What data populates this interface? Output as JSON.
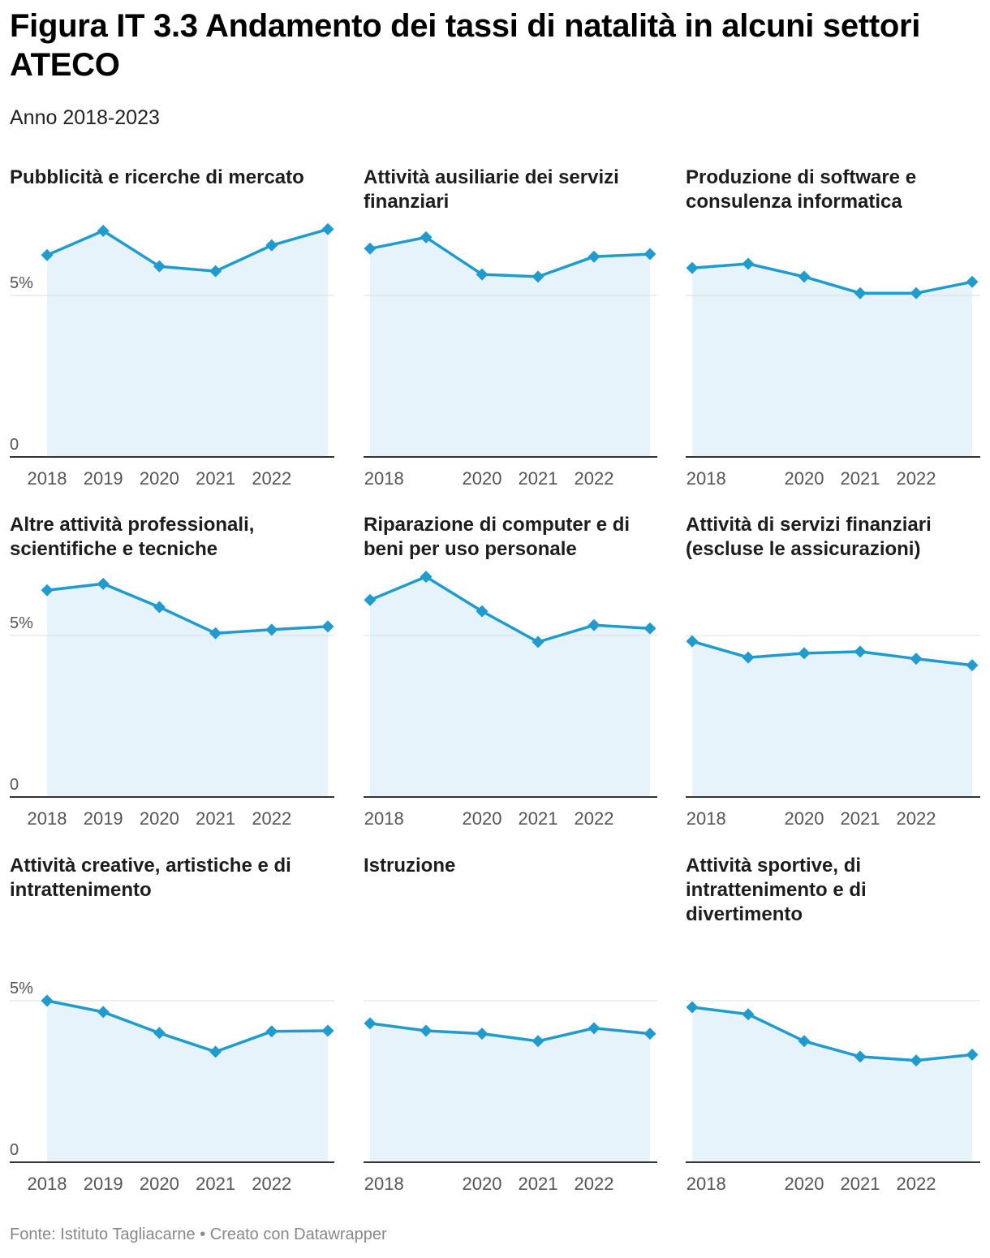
{
  "title": "Figura IT 3.3 Andamento dei tassi di natalità in alcuni settori ATECO",
  "subtitle": "Anno 2018-2023",
  "source": "Fonte: Istituto Tagliacarne • Creato con Datawrapper",
  "colors": {
    "line": "#1f9bce",
    "area": "#e6f3fa",
    "grid": "#dddddd",
    "axis": "#333333",
    "tick": "#555555"
  },
  "chart_data": [
    {
      "type": "area",
      "title": "Pubblicità e ricerche di mercato",
      "x": [
        2018,
        2019,
        2020,
        2021,
        2022,
        2023
      ],
      "values": [
        6.25,
        7.0,
        5.9,
        5.75,
        6.55,
        7.05
      ],
      "ylim": [
        0,
        7.5
      ],
      "y_ticks": [
        {
          "value": 0,
          "label": "0"
        },
        {
          "value": 5,
          "label": "5%"
        }
      ],
      "x_ticks": [
        {
          "value": 2018,
          "label": "2018"
        },
        {
          "value": 2019,
          "label": "2019"
        },
        {
          "value": 2020,
          "label": "2020"
        },
        {
          "value": 2021,
          "label": "2021"
        },
        {
          "value": 2022,
          "label": "2022"
        }
      ]
    },
    {
      "type": "area",
      "title": "Attività ausiliarie dei servizi finanziari",
      "x": [
        2018,
        2019,
        2020,
        2021,
        2022,
        2023
      ],
      "values": [
        6.45,
        6.8,
        5.65,
        5.58,
        6.2,
        6.28
      ],
      "ylim": [
        0,
        7.5
      ],
      "y_ticks": [
        {
          "value": 0,
          "label": ""
        },
        {
          "value": 5,
          "label": ""
        }
      ],
      "x_ticks": [
        {
          "value": 2018.25,
          "label": "2018"
        },
        {
          "value": 2020,
          "label": "2020"
        },
        {
          "value": 2021,
          "label": "2021"
        },
        {
          "value": 2022,
          "label": "2022"
        }
      ]
    },
    {
      "type": "area",
      "title": "Produzione di software e consulenza informatica",
      "x": [
        2018,
        2019,
        2020,
        2021,
        2022,
        2023
      ],
      "values": [
        5.85,
        5.98,
        5.58,
        5.07,
        5.07,
        5.42
      ],
      "ylim": [
        0,
        7.5
      ],
      "y_ticks": [
        {
          "value": 0,
          "label": ""
        },
        {
          "value": 5,
          "label": ""
        }
      ],
      "x_ticks": [
        {
          "value": 2018.25,
          "label": "2018"
        },
        {
          "value": 2020,
          "label": "2020"
        },
        {
          "value": 2021,
          "label": "2021"
        },
        {
          "value": 2022,
          "label": "2022"
        }
      ]
    },
    {
      "type": "area",
      "title": "Altre attività professionali, scientifiche e tecniche",
      "x": [
        2018,
        2019,
        2020,
        2021,
        2022,
        2023
      ],
      "values": [
        6.4,
        6.6,
        5.88,
        5.07,
        5.18,
        5.28
      ],
      "ylim": [
        0,
        7.5
      ],
      "y_ticks": [
        {
          "value": 0,
          "label": "0"
        },
        {
          "value": 5,
          "label": "5%"
        }
      ],
      "x_ticks": [
        {
          "value": 2018,
          "label": "2018"
        },
        {
          "value": 2019,
          "label": "2019"
        },
        {
          "value": 2020,
          "label": "2020"
        },
        {
          "value": 2021,
          "label": "2021"
        },
        {
          "value": 2022,
          "label": "2022"
        }
      ]
    },
    {
      "type": "area",
      "title": "Riparazione di computer e di beni per uso personale",
      "x": [
        2018,
        2019,
        2020,
        2021,
        2022,
        2023
      ],
      "values": [
        6.1,
        6.82,
        5.75,
        4.8,
        5.32,
        5.22
      ],
      "ylim": [
        0,
        7.5
      ],
      "y_ticks": [
        {
          "value": 0,
          "label": ""
        },
        {
          "value": 5,
          "label": ""
        }
      ],
      "x_ticks": [
        {
          "value": 2018.25,
          "label": "2018"
        },
        {
          "value": 2020,
          "label": "2020"
        },
        {
          "value": 2021,
          "label": "2021"
        },
        {
          "value": 2022,
          "label": "2022"
        }
      ]
    },
    {
      "type": "area",
      "title": "Attività di servizi finanziari (escluse le assicurazioni)",
      "x": [
        2018,
        2019,
        2020,
        2021,
        2022,
        2023
      ],
      "values": [
        4.82,
        4.32,
        4.45,
        4.5,
        4.28,
        4.08
      ],
      "ylim": [
        0,
        7.5
      ],
      "y_ticks": [
        {
          "value": 0,
          "label": ""
        },
        {
          "value": 5,
          "label": ""
        }
      ],
      "x_ticks": [
        {
          "value": 2018.25,
          "label": "2018"
        },
        {
          "value": 2020,
          "label": "2020"
        },
        {
          "value": 2021,
          "label": "2021"
        },
        {
          "value": 2022,
          "label": "2022"
        }
      ]
    },
    {
      "type": "area",
      "title": "Attività creative, artistiche e di intrattenimento",
      "x": [
        2018,
        2019,
        2020,
        2021,
        2022,
        2023
      ],
      "values": [
        5.0,
        4.65,
        4.0,
        3.42,
        4.05,
        4.07
      ],
      "ylim": [
        0,
        5.5
      ],
      "y_ticks": [
        {
          "value": 0,
          "label": "0"
        },
        {
          "value": 5,
          "label": "5%"
        }
      ],
      "x_ticks": [
        {
          "value": 2018,
          "label": "2018"
        },
        {
          "value": 2019,
          "label": "2019"
        },
        {
          "value": 2020,
          "label": "2020"
        },
        {
          "value": 2021,
          "label": "2021"
        },
        {
          "value": 2022,
          "label": "2022"
        }
      ]
    },
    {
      "type": "area",
      "title": "Istruzione",
      "x": [
        2018,
        2019,
        2020,
        2021,
        2022,
        2023
      ],
      "values": [
        4.3,
        4.07,
        3.98,
        3.75,
        4.15,
        3.98
      ],
      "ylim": [
        0,
        5.5
      ],
      "y_ticks": [
        {
          "value": 0,
          "label": ""
        },
        {
          "value": 5,
          "label": ""
        }
      ],
      "x_ticks": [
        {
          "value": 2018.25,
          "label": "2018"
        },
        {
          "value": 2020,
          "label": "2020"
        },
        {
          "value": 2021,
          "label": "2021"
        },
        {
          "value": 2022,
          "label": "2022"
        }
      ]
    },
    {
      "type": "area",
      "title": "Attività sportive, di intrattenimento e di divertimento",
      "x": [
        2018,
        2019,
        2020,
        2021,
        2022,
        2023
      ],
      "values": [
        4.8,
        4.58,
        3.75,
        3.27,
        3.15,
        3.33
      ],
      "ylim": [
        0,
        5.5
      ],
      "y_ticks": [
        {
          "value": 0,
          "label": ""
        },
        {
          "value": 5,
          "label": ""
        }
      ],
      "x_ticks": [
        {
          "value": 2018.25,
          "label": "2018"
        },
        {
          "value": 2020,
          "label": "2020"
        },
        {
          "value": 2021,
          "label": "2021"
        },
        {
          "value": 2022,
          "label": "2022"
        }
      ]
    }
  ]
}
